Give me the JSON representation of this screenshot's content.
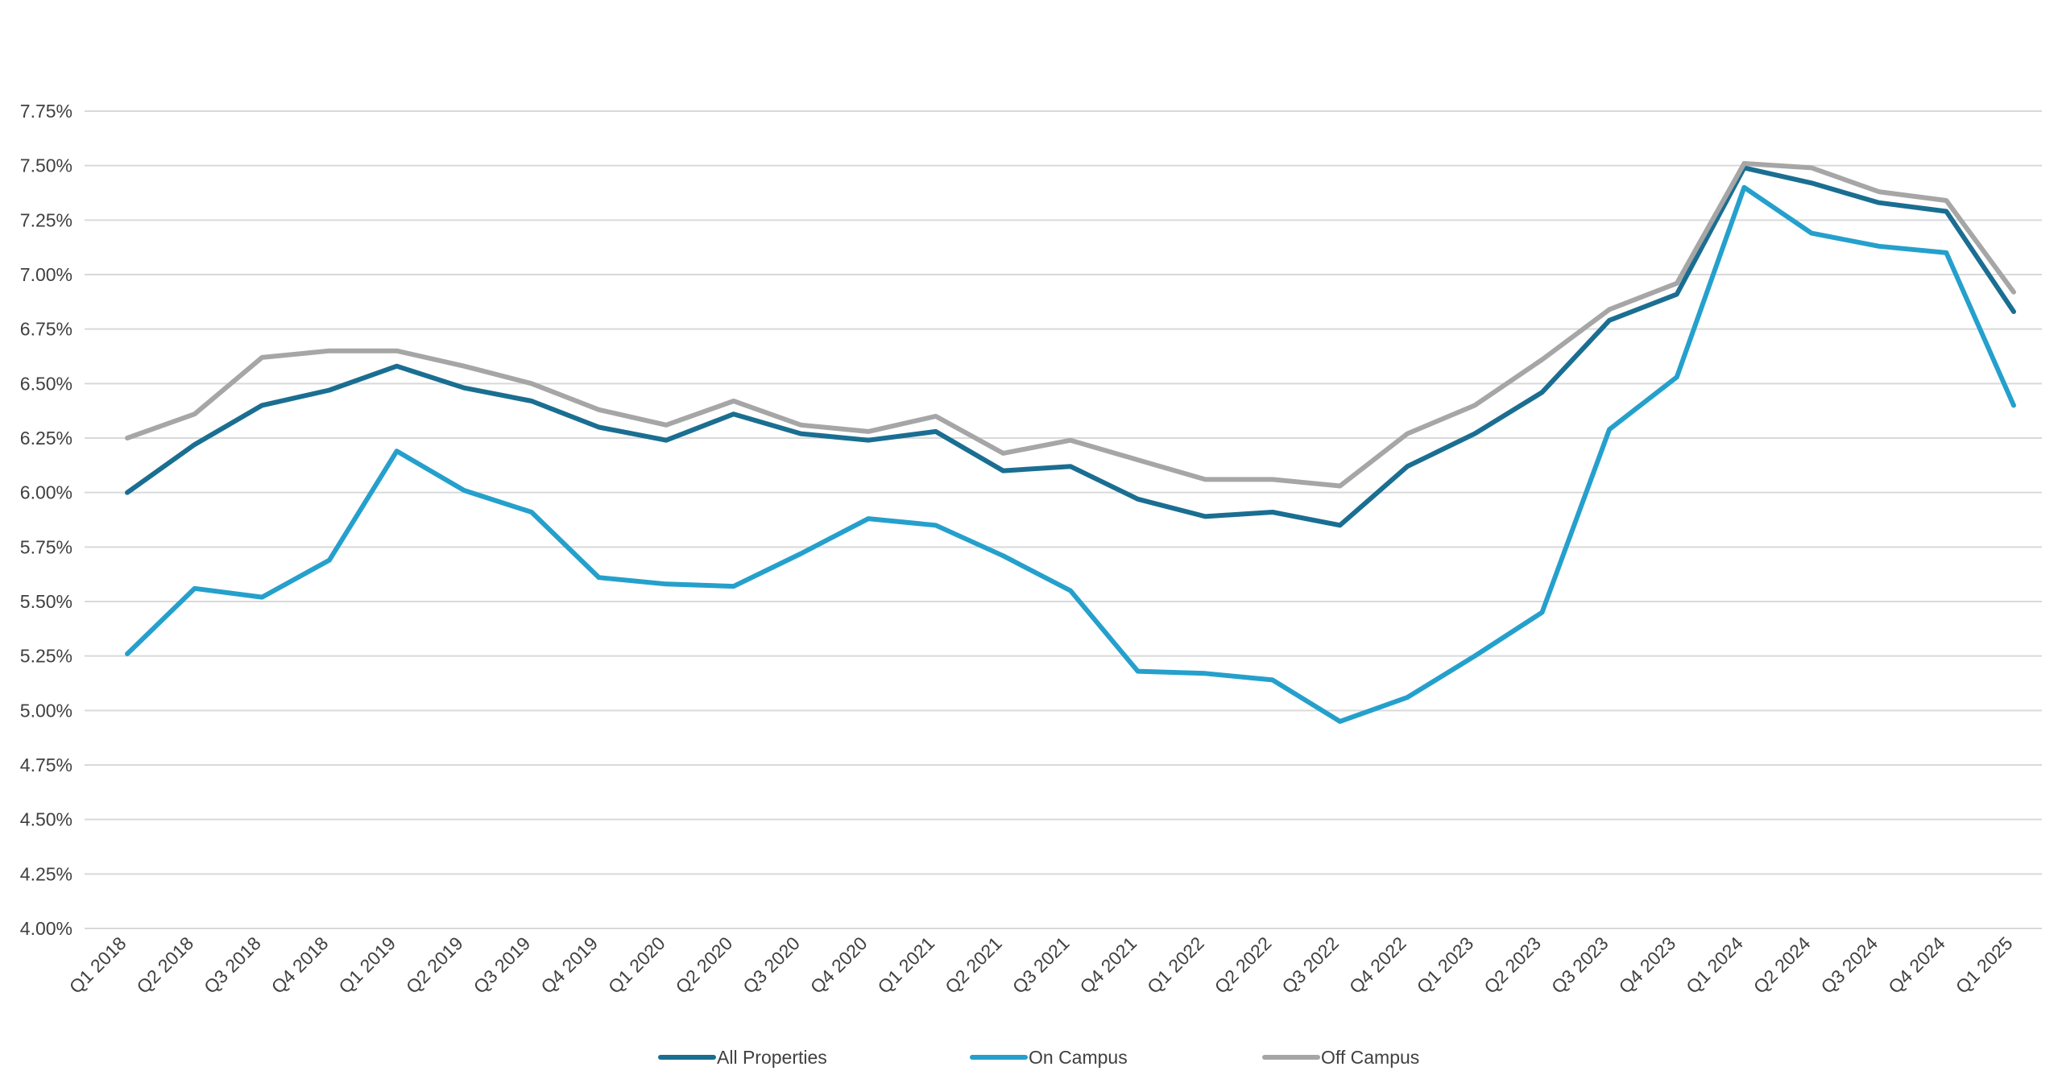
{
  "chart_data": {
    "type": "line",
    "title": "",
    "xlabel": "",
    "ylabel": "",
    "ylim": [
      4.0,
      7.75
    ],
    "y_ticks": [
      "4.00%",
      "4.25%",
      "4.50%",
      "4.75%",
      "5.00%",
      "5.25%",
      "5.50%",
      "5.75%",
      "6.00%",
      "6.25%",
      "6.50%",
      "6.75%",
      "7.00%",
      "7.25%",
      "7.50%",
      "7.75%"
    ],
    "y_tick_values": [
      4.0,
      4.25,
      4.5,
      4.75,
      5.0,
      5.25,
      5.5,
      5.75,
      6.0,
      6.25,
      6.5,
      6.75,
      7.0,
      7.25,
      7.5,
      7.75
    ],
    "grid": true,
    "legend_position": "bottom",
    "categories": [
      "Q1 2018",
      "Q2 2018",
      "Q3 2018",
      "Q4 2018",
      "Q1 2019",
      "Q2 2019",
      "Q3 2019",
      "Q4 2019",
      "Q1 2020",
      "Q2 2020",
      "Q3 2020",
      "Q4 2020",
      "Q1 2021",
      "Q2 2021",
      "Q3 2021",
      "Q4 2021",
      "Q1 2022",
      "Q2 2022",
      "Q3 2022",
      "Q4 2022",
      "Q1 2023",
      "Q2 2023",
      "Q3 2023",
      "Q4 2023",
      "Q1 2024",
      "Q2 2024",
      "Q3 2024",
      "Q4 2024",
      "Q1 2025"
    ],
    "series": [
      {
        "name": "All Properties",
        "color": "#1a6e91",
        "values": [
          6.0,
          6.22,
          6.4,
          6.47,
          6.58,
          6.48,
          6.42,
          6.3,
          6.24,
          6.36,
          6.27,
          6.24,
          6.28,
          6.1,
          6.12,
          5.97,
          5.89,
          5.91,
          5.85,
          6.12,
          6.27,
          6.46,
          6.79,
          6.91,
          7.49,
          7.42,
          7.33,
          7.29,
          6.83
        ]
      },
      {
        "name": "On Campus",
        "color": "#25a0cc",
        "values": [
          5.26,
          5.56,
          5.52,
          5.69,
          6.19,
          6.01,
          5.91,
          5.61,
          5.58,
          5.57,
          5.72,
          5.88,
          5.85,
          5.71,
          5.55,
          5.18,
          5.17,
          5.14,
          4.95,
          5.06,
          5.25,
          5.45,
          6.29,
          6.53,
          7.4,
          7.19,
          7.13,
          7.1,
          6.4
        ]
      },
      {
        "name": "Off Campus",
        "color": "#a6a6a6",
        "values": [
          6.25,
          6.36,
          6.62,
          6.65,
          6.65,
          6.58,
          6.5,
          6.38,
          6.31,
          6.42,
          6.31,
          6.28,
          6.35,
          6.18,
          6.24,
          6.15,
          6.06,
          6.06,
          6.03,
          6.27,
          6.4,
          6.61,
          6.84,
          6.96,
          7.51,
          7.49,
          7.38,
          7.34,
          6.92
        ]
      }
    ]
  }
}
